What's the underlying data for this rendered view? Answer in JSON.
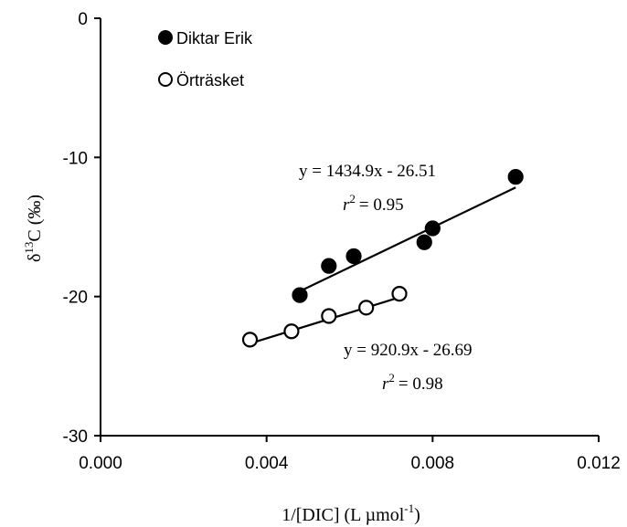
{
  "chart_data": {
    "type": "scatter",
    "xlabel": {
      "prefix": "1/[DIC] (L µmol",
      "sup": "-1",
      "suffix": ")"
    },
    "ylabel": {
      "delta": "δ",
      "sup": "13",
      "suffix": "C (‰)"
    },
    "xlim": [
      0,
      0.012
    ],
    "ylim": [
      -30,
      0
    ],
    "x_ticks": [
      "0.000",
      "0.004",
      "0.008",
      "0.012"
    ],
    "x_tick_values": [
      0,
      0.004,
      0.008,
      0.012
    ],
    "y_ticks": [
      "0",
      "-10",
      "-20",
      "-30"
    ],
    "y_tick_values": [
      0,
      -10,
      -20,
      -30
    ],
    "legend_placement": "top-left",
    "grid": false,
    "series": [
      {
        "name": "Diktar Erik",
        "marker": "filled-circle",
        "x": [
          0.0048,
          0.0055,
          0.0061,
          0.0078,
          0.008,
          0.01
        ],
        "y": [
          -19.9,
          -17.8,
          -17.1,
          -16.1,
          -15.1,
          -11.4
        ],
        "fit": {
          "slope": 1434.9,
          "intercept": -26.51,
          "x_range": [
            0.0048,
            0.01
          ]
        },
        "equation": "y = 1434.9x - 26.51",
        "r2": "= 0.95"
      },
      {
        "name": "Örträsket",
        "marker": "open-circle",
        "x": [
          0.0036,
          0.0046,
          0.0055,
          0.0064,
          0.0072
        ],
        "y": [
          -23.1,
          -22.5,
          -21.4,
          -20.8,
          -19.8
        ],
        "fit": {
          "slope": 920.9,
          "intercept": -26.69,
          "x_range": [
            0.0036,
            0.0072
          ]
        },
        "equation": "y = 920.9x - 26.69",
        "r2": "= 0.98"
      }
    ]
  }
}
